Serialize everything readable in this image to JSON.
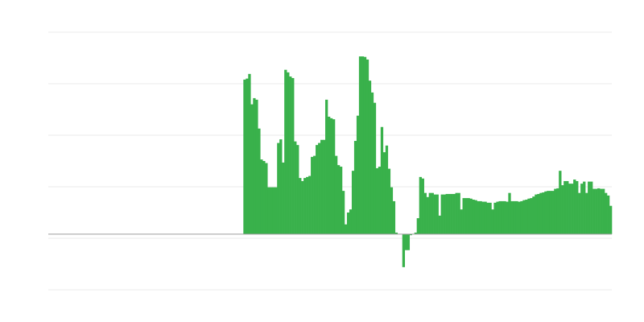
{
  "chart_data": {
    "type": "bar",
    "title": "",
    "xlabel": "",
    "ylabel": "",
    "grid": true,
    "legend": "none",
    "bar_color": "#39b14b",
    "grid_color": "#ebebeb",
    "baseline_color": "#9e9e9e",
    "ylim": [
      -1.08,
      3.92
    ],
    "y_gridlines": [
      -1.08,
      -0.08,
      0.92,
      1.92,
      2.92,
      3.92
    ],
    "values": [
      0,
      0,
      0,
      0,
      0,
      0,
      0,
      0,
      0,
      0,
      0,
      0,
      0,
      0,
      0,
      0,
      0,
      0,
      0,
      0,
      0,
      0,
      0,
      0,
      0,
      0,
      0,
      0,
      0,
      0,
      0,
      0,
      0,
      0,
      0,
      0,
      0,
      0,
      0,
      0,
      0,
      0,
      0,
      0,
      0,
      0,
      0,
      0,
      0,
      0,
      0,
      0,
      0,
      0,
      0,
      0,
      0,
      0,
      0,
      0,
      0,
      0,
      0,
      0,
      0,
      0,
      0,
      0,
      0,
      0,
      0,
      0,
      0,
      0,
      0,
      0,
      0,
      0,
      0,
      0,
      0,
      3.0,
      3.02,
      3.11,
      2.52,
      2.64,
      2.61,
      2.05,
      1.45,
      1.42,
      1.38,
      0.91,
      0.91,
      0.91,
      0.91,
      1.77,
      1.84,
      1.39,
      3.19,
      3.14,
      3.06,
      3.03,
      1.8,
      1.73,
      1.09,
      1.03,
      1.09,
      1.11,
      1.13,
      1.5,
      1.52,
      1.73,
      1.77,
      1.83,
      1.83,
      2.61,
      2.28,
      2.25,
      2.23,
      1.52,
      1.34,
      1.31,
      0.84,
      0.19,
      0.42,
      0.48,
      1.23,
      1.81,
      2.3,
      3.45,
      3.45,
      3.44,
      3.39,
      2.98,
      2.75,
      2.55,
      1.28,
      1.31,
      2.08,
      1.59,
      1.72,
      1.27,
      0.91,
      0.64,
      0.03,
      0,
      0,
      -0.64,
      -0.31,
      -0.31,
      -0.02,
      0,
      0.03,
      0.31,
      1.11,
      1.08,
      0.8,
      0.72,
      0.8,
      0.8,
      0.77,
      0.77,
      0.36,
      0.77,
      0.77,
      0.78,
      0.78,
      0.78,
      0.78,
      0.8,
      0.8,
      0.48,
      0.7,
      0.7,
      0.7,
      0.69,
      0.67,
      0.66,
      0.64,
      0.64,
      0.63,
      0.63,
      0.61,
      0.61,
      0.48,
      0.61,
      0.63,
      0.64,
      0.64,
      0.64,
      0.63,
      0.8,
      0.64,
      0.64,
      0.64,
      0.63,
      0.64,
      0.66,
      0.67,
      0.69,
      0.7,
      0.73,
      0.77,
      0.78,
      0.8,
      0.81,
      0.83,
      0.84,
      0.84,
      0.84,
      0.88,
      0.89,
      1.23,
      0.95,
      1.03,
      1.03,
      0.98,
      0.98,
      1.06,
      1.03,
      0.8,
      0.98,
      1.02,
      0.8,
      1.02,
      1.02,
      0.88,
      0.88,
      0.89,
      0.88,
      0.88,
      0.8,
      0.75,
      0.55
    ]
  }
}
